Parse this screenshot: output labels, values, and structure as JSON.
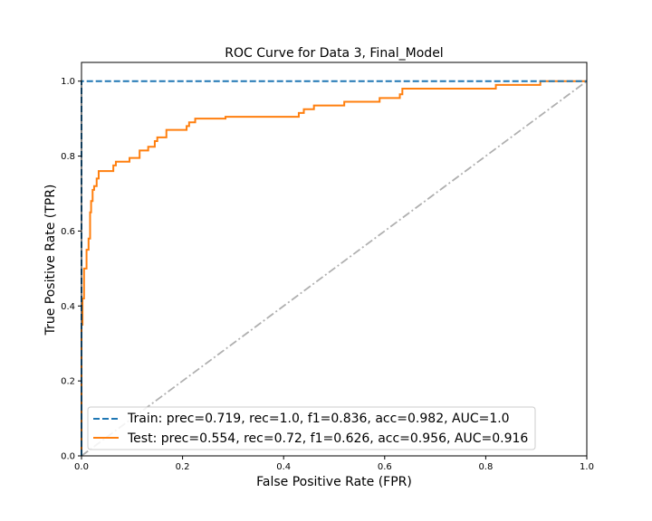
{
  "chart_data": {
    "type": "line",
    "title": "ROC Curve for Data 3, Final_Model",
    "xlabel": "False Positive Rate (FPR)",
    "ylabel": "True Positive Rate (TPR)",
    "xlim": [
      0.0,
      1.0
    ],
    "ylim": [
      0.0,
      1.05
    ],
    "x_ticks": [
      "0.0",
      "0.2",
      "0.4",
      "0.6",
      "0.8",
      "1.0"
    ],
    "y_ticks": [
      "0.0",
      "0.2",
      "0.4",
      "0.6",
      "0.8",
      "1.0"
    ],
    "grid": false,
    "legend_position": "lower-right",
    "colors": {
      "train": "#1f77b4",
      "test": "#ff7f0e",
      "chance": "#b0b0b0"
    },
    "series": [
      {
        "name": "Train:  prec=0.719, rec=1.0, f1=0.836, acc=0.982, AUC=1.0",
        "style": "dashed",
        "color": "#1f77b4",
        "x": [
          0.0,
          0.0,
          1.0
        ],
        "y": [
          0.0,
          1.0,
          1.0
        ]
      },
      {
        "name": "Test: prec=0.554, rec=0.72, f1=0.626, acc=0.956, AUC=0.916",
        "style": "solid",
        "color": "#ff7f0e",
        "x": [
          0.0,
          0.0,
          0.002,
          0.002,
          0.005,
          0.005,
          0.01,
          0.01,
          0.014,
          0.014,
          0.017,
          0.017,
          0.019,
          0.019,
          0.022,
          0.022,
          0.025,
          0.025,
          0.03,
          0.03,
          0.034,
          0.034,
          0.037,
          0.037,
          0.063,
          0.063,
          0.068,
          0.068,
          0.095,
          0.095,
          0.115,
          0.115,
          0.132,
          0.132,
          0.145,
          0.145,
          0.15,
          0.15,
          0.168,
          0.168,
          0.208,
          0.208,
          0.213,
          0.213,
          0.225,
          0.225,
          0.285,
          0.285,
          0.43,
          0.43,
          0.44,
          0.44,
          0.46,
          0.46,
          0.52,
          0.52,
          0.59,
          0.59,
          0.63,
          0.63,
          0.635,
          0.635,
          0.66,
          0.66,
          0.82,
          0.82,
          0.908,
          0.908,
          1.0
        ],
        "y": [
          0.0,
          0.35,
          0.35,
          0.42,
          0.42,
          0.5,
          0.5,
          0.55,
          0.55,
          0.58,
          0.58,
          0.65,
          0.65,
          0.68,
          0.68,
          0.71,
          0.71,
          0.72,
          0.72,
          0.74,
          0.74,
          0.76,
          0.76,
          0.76,
          0.76,
          0.775,
          0.775,
          0.785,
          0.785,
          0.795,
          0.795,
          0.815,
          0.815,
          0.825,
          0.825,
          0.84,
          0.84,
          0.85,
          0.85,
          0.87,
          0.87,
          0.88,
          0.88,
          0.89,
          0.89,
          0.9,
          0.9,
          0.905,
          0.905,
          0.915,
          0.915,
          0.925,
          0.925,
          0.935,
          0.935,
          0.945,
          0.945,
          0.955,
          0.955,
          0.965,
          0.965,
          0.98,
          0.98,
          0.98,
          0.98,
          0.99,
          0.99,
          1.0,
          1.0
        ]
      },
      {
        "name": "",
        "style": "dashdot",
        "color": "#b0b0b0",
        "x": [
          0.0,
          1.0
        ],
        "y": [
          0.0,
          1.0
        ]
      }
    ]
  }
}
